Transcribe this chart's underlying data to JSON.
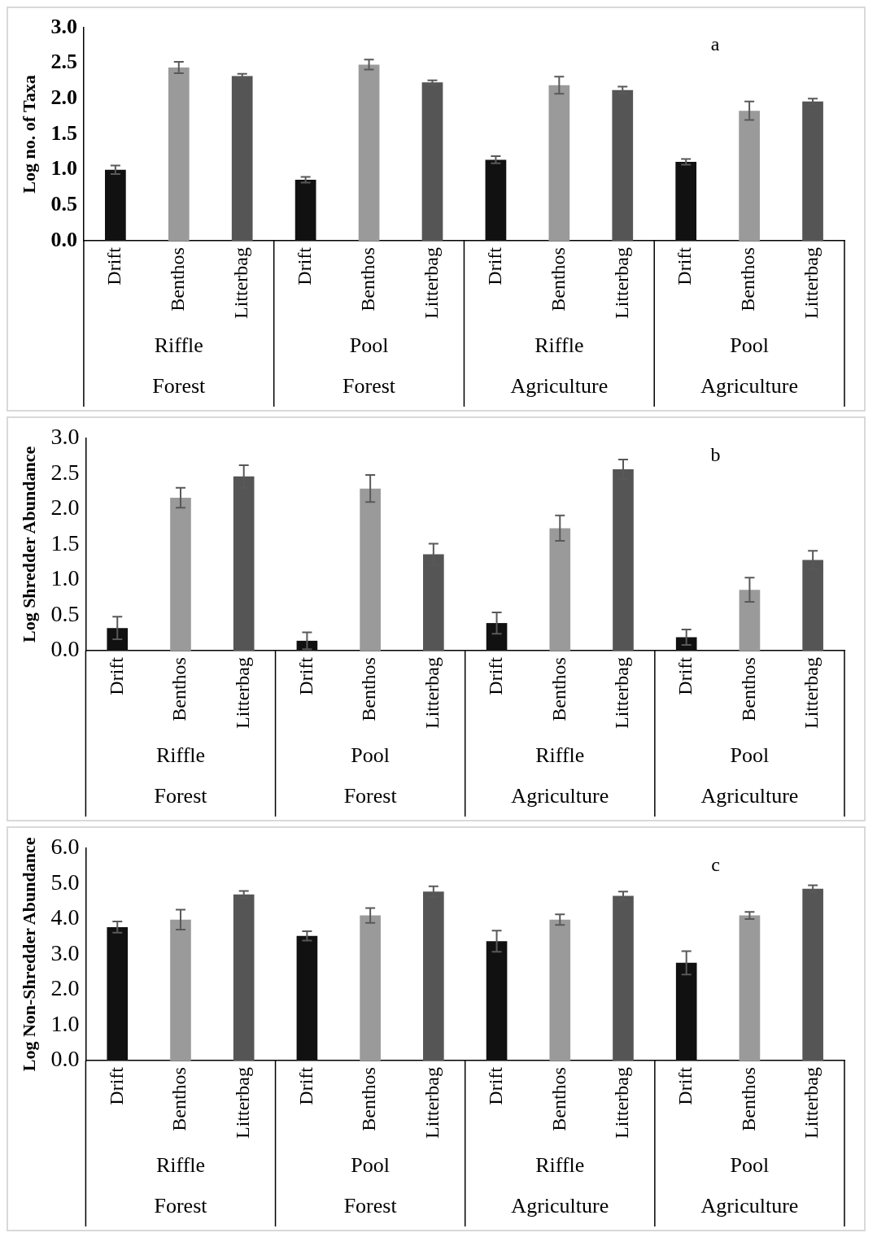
{
  "chart_data": [
    {
      "type": "bar",
      "ylabel": "Log no. of Taxa",
      "categories": [
        "Drift",
        "Benthos",
        "Litterbag",
        "Drift",
        "Benthos",
        "Litterbag",
        "Drift",
        "Benthos",
        "Litterbag",
        "Drift",
        "Benthos",
        "Litterbag"
      ],
      "values": [
        1.0,
        2.44,
        2.32,
        0.86,
        2.48,
        2.23,
        1.14,
        2.19,
        2.12,
        1.11,
        1.83,
        1.96
      ],
      "errors": [
        0.06,
        0.08,
        0.03,
        0.04,
        0.07,
        0.03,
        0.05,
        0.12,
        0.05,
        0.04,
        0.13,
        0.04
      ],
      "colors": [
        "#111111",
        "#9a9a9a",
        "#555555",
        "#111111",
        "#9a9a9a",
        "#555555",
        "#111111",
        "#9a9a9a",
        "#555555",
        "#111111",
        "#9a9a9a",
        "#555555"
      ],
      "ylim": [
        0,
        3
      ],
      "yticks": [
        {
          "value": 0,
          "label": "0.0"
        },
        {
          "value": 0.5,
          "label": "0.5"
        },
        {
          "value": 1,
          "label": "1.0"
        },
        {
          "value": 1.5,
          "label": "1.5"
        },
        {
          "value": 2,
          "label": "2.0"
        },
        {
          "value": 2.5,
          "label": "2.5"
        },
        {
          "value": 3,
          "label": "3.0"
        }
      ],
      "annotations": [
        "a",
        "Riffle",
        "Pool",
        "Riffle",
        "Pool",
        "Forest",
        "Forest",
        "Agriculture",
        "Agriculture"
      ],
      "grid": false,
      "legend": false
    },
    {
      "type": "bar",
      "ylabel": "Log Shredder Abundance",
      "categories": [
        "Drift",
        "Benthos",
        "Litterbag",
        "Drift",
        "Benthos",
        "Litterbag",
        "Drift",
        "Benthos",
        "Litterbag",
        "Drift",
        "Benthos",
        "Litterbag"
      ],
      "values": [
        0.32,
        2.16,
        2.46,
        0.14,
        2.29,
        1.36,
        0.39,
        1.73,
        2.56,
        0.19,
        0.86,
        1.28
      ],
      "errors": [
        0.16,
        0.14,
        0.16,
        0.12,
        0.19,
        0.15,
        0.15,
        0.18,
        0.14,
        0.11,
        0.17,
        0.13
      ],
      "colors": [
        "#111111",
        "#9a9a9a",
        "#555555",
        "#111111",
        "#9a9a9a",
        "#555555",
        "#111111",
        "#9a9a9a",
        "#555555",
        "#111111",
        "#9a9a9a",
        "#555555"
      ],
      "ylim": [
        0,
        3
      ],
      "yticks": [
        {
          "value": 0,
          "label": "0.0"
        },
        {
          "value": 0.5,
          "label": "0.5"
        },
        {
          "value": 1,
          "label": "1.0"
        },
        {
          "value": 1.5,
          "label": "1.5"
        },
        {
          "value": 2,
          "label": "2.0"
        },
        {
          "value": 2.5,
          "label": "2.5"
        },
        {
          "value": 3,
          "label": "3.0"
        }
      ],
      "annotations": [
        "b",
        "Riffle",
        "Pool",
        "Riffle",
        "Pool",
        "Forest",
        "Forest",
        "Agriculture",
        "Agriculture"
      ],
      "grid": false,
      "legend": false
    },
    {
      "type": "bar",
      "ylabel": "Log Non-Shredder Abundance",
      "categories": [
        "Drift",
        "Benthos",
        "Litterbag",
        "Drift",
        "Benthos",
        "Litterbag",
        "Drift",
        "Benthos",
        "Litterbag",
        "Drift",
        "Benthos",
        "Litterbag"
      ],
      "values": [
        3.77,
        3.98,
        4.69,
        3.52,
        4.1,
        4.77,
        3.37,
        3.98,
        4.65,
        2.76,
        4.1,
        4.85
      ],
      "errors": [
        0.16,
        0.28,
        0.1,
        0.13,
        0.21,
        0.15,
        0.3,
        0.15,
        0.12,
        0.33,
        0.1,
        0.1
      ],
      "colors": [
        "#111111",
        "#9a9a9a",
        "#555555",
        "#111111",
        "#9a9a9a",
        "#555555",
        "#111111",
        "#9a9a9a",
        "#555555",
        "#111111",
        "#9a9a9a",
        "#555555"
      ],
      "ylim": [
        0,
        6
      ],
      "yticks": [
        {
          "value": 0,
          "label": "0.0"
        },
        {
          "value": 1,
          "label": "1.0"
        },
        {
          "value": 2,
          "label": "2.0"
        },
        {
          "value": 3,
          "label": "3.0"
        },
        {
          "value": 4,
          "label": "4.0"
        },
        {
          "value": 5,
          "label": "5.0"
        },
        {
          "value": 6,
          "label": "6.0"
        }
      ],
      "annotations": [
        "c",
        "Riffle",
        "Pool",
        "Riffle",
        "Pool",
        "Forest",
        "Forest",
        "Agriculture",
        "Agriculture"
      ],
      "grid": false,
      "legend": false
    }
  ]
}
